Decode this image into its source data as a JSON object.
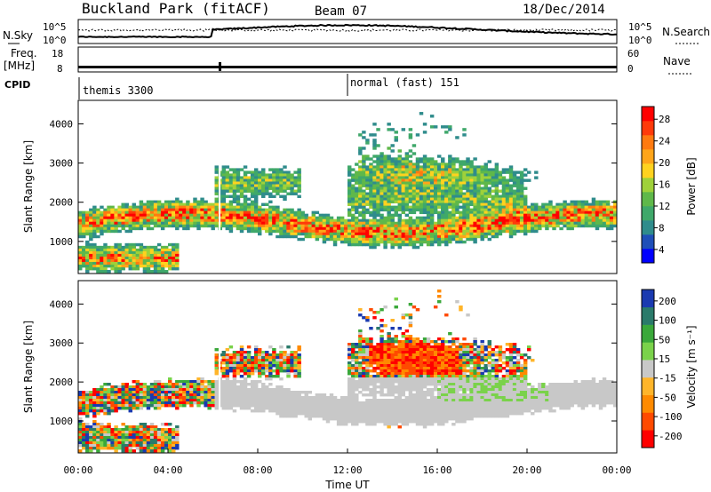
{
  "header": {
    "station": "Buckland Park (fitACF)",
    "beam": "Beam 07",
    "date": "18/Dec/2014"
  },
  "strips": {
    "nsky_label": "N.Sky",
    "nsky_ticks": [
      "10^5",
      "10^0"
    ],
    "nsearch_label": "N.Search",
    "nsearch_ticks": [
      "10^5",
      "10^0"
    ],
    "freq_label_1": "Freq.",
    "freq_label_2": "[MHz]",
    "freq_ticks": [
      "18",
      "8"
    ],
    "nave_label": "Nave",
    "nave_ticks": [
      "60",
      "0"
    ],
    "cpid_label": "CPID",
    "cpid_segments": [
      {
        "label": "themis 3300",
        "start_hour": 0,
        "end_hour": 12
      },
      {
        "label": "normal (fast) 151",
        "start_hour": 12,
        "end_hour": 24
      }
    ]
  },
  "chart_data": [
    {
      "type": "heatmap",
      "name": "power",
      "ylabel": "Slant Range [km]",
      "yticks": [
        "4000",
        "3000",
        "2000",
        "1000"
      ],
      "ytick_values": [
        4000,
        3000,
        2000,
        1000
      ],
      "ylim": [
        180,
        4600
      ],
      "xlim_hours": [
        0,
        24
      ],
      "colorbar_label": "Power [dB]",
      "colorbar_ticks": [
        "28",
        "24",
        "20",
        "16",
        "12",
        "8",
        "4"
      ],
      "colorbar_values": [
        28,
        24,
        20,
        16,
        12,
        8,
        4
      ],
      "colorbar_range": [
        0,
        31
      ],
      "colors": [
        "#0000ff",
        "#1f4fb8",
        "#2f8c8c",
        "#3fa86a",
        "#5fb84a",
        "#9fd13a",
        "#ffd21f",
        "#ffa51a",
        "#ff7a10",
        "#ff3a0a",
        "#ff0000"
      ]
    },
    {
      "type": "heatmap",
      "name": "velocity",
      "ylabel": "Slant Range [km]",
      "yticks": [
        "4000",
        "3000",
        "2000",
        "1000"
      ],
      "ytick_values": [
        4000,
        3000,
        2000,
        1000
      ],
      "ylim": [
        180,
        4600
      ],
      "xlim_hours": [
        0,
        24
      ],
      "colorbar_label": "Velocity [m s⁻¹]",
      "colorbar_ticks": [
        "200",
        "100",
        "50",
        "15",
        "-15",
        "-50",
        "-100",
        "-200"
      ],
      "colorbar_values": [
        200,
        100,
        50,
        15,
        -15,
        -50,
        -100,
        -200
      ],
      "colors": [
        "#ff0000",
        "#ff4a00",
        "#ff8a00",
        "#ffb52a",
        "#c8c8c8",
        "#7ad24a",
        "#3aa83a",
        "#2a7a6a",
        "#1a3ab0"
      ]
    }
  ],
  "xaxis": {
    "label": "Time UT",
    "ticks": [
      "00:00",
      "04:00",
      "08:00",
      "12:00",
      "16:00",
      "20:00",
      "00:00"
    ],
    "tick_hours": [
      0,
      4,
      8,
      12,
      16,
      20,
      24
    ]
  }
}
